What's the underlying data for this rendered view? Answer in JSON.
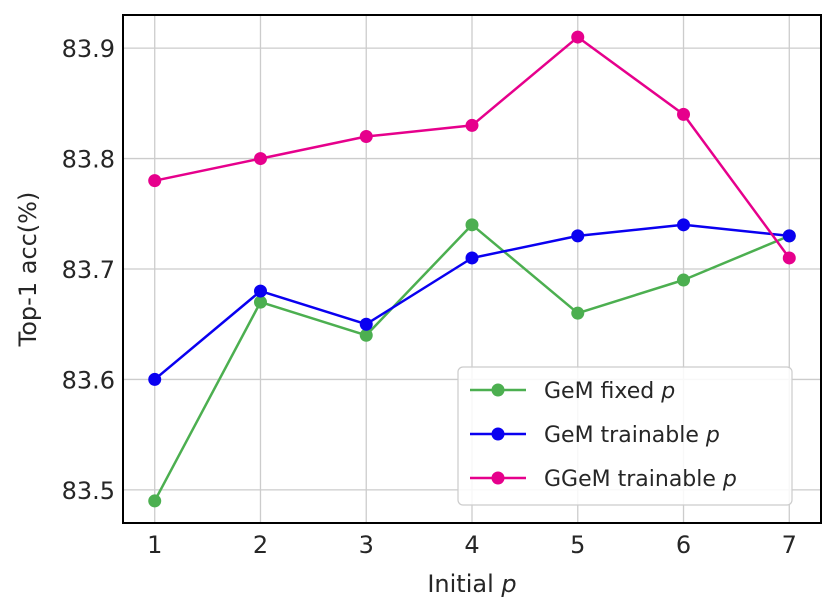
{
  "chart_data": {
    "type": "line",
    "xlabel": "Initial",
    "xlabel_var": "p",
    "ylabel": "Top-1 acc(%)",
    "x": [
      1,
      2,
      3,
      4,
      5,
      6,
      7
    ],
    "xticks": [
      "1",
      "2",
      "3",
      "4",
      "5",
      "6",
      "7"
    ],
    "yticks": [
      "83.5",
      "83.6",
      "83.7",
      "83.8",
      "83.9"
    ],
    "xlim": [
      0.7,
      7.3
    ],
    "ylim": [
      83.47,
      83.93
    ],
    "grid": true,
    "legend_position": "bottom-right",
    "series": [
      {
        "name": "GeM fixed",
        "name_var": "p",
        "color": "#4caf50",
        "values": [
          83.49,
          83.67,
          83.64,
          83.74,
          83.66,
          83.69,
          83.73
        ]
      },
      {
        "name": "GeM trainable",
        "name_var": "p",
        "color": "#0a00f0",
        "values": [
          83.6,
          83.68,
          83.65,
          83.71,
          83.73,
          83.74,
          83.73
        ]
      },
      {
        "name": "GGeM trainable",
        "name_var": "p",
        "color": "#e6008c",
        "values": [
          83.78,
          83.8,
          83.82,
          83.83,
          83.91,
          83.84,
          83.71
        ]
      }
    ]
  }
}
